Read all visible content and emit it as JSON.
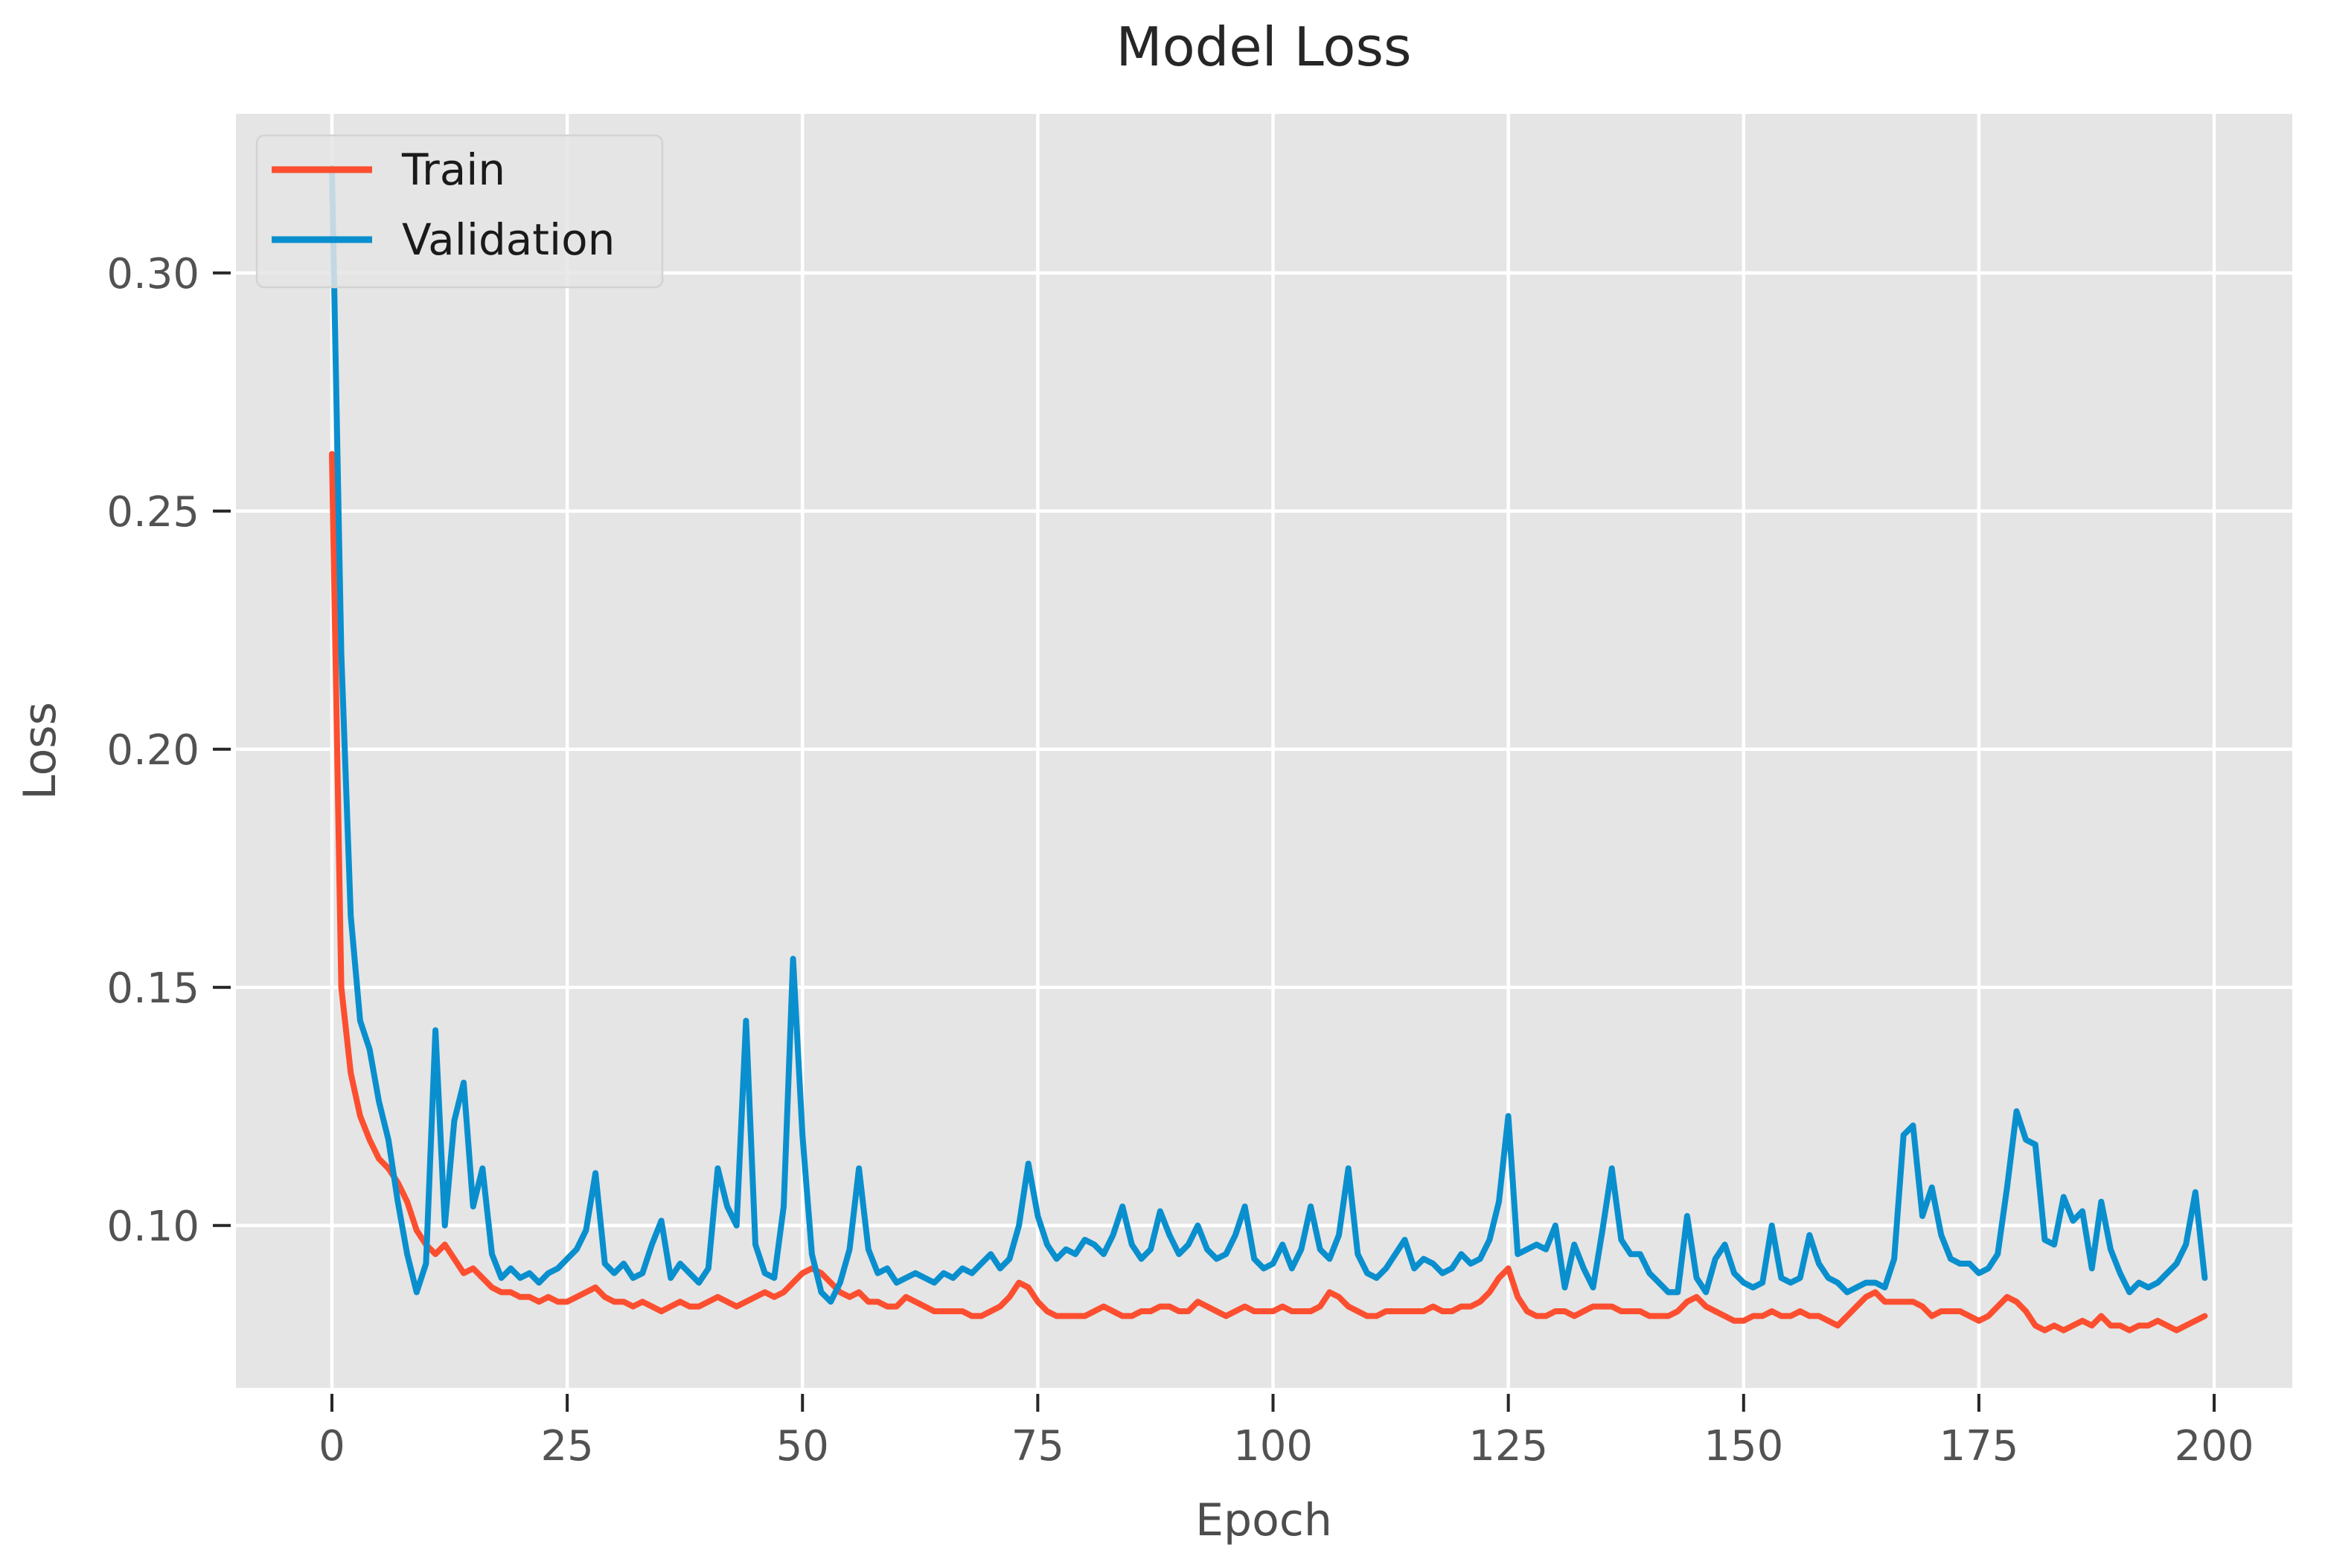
{
  "chart_data": {
    "type": "line",
    "title": "Model Loss",
    "xlabel": "Epoch",
    "ylabel": "Loss",
    "grid": true,
    "legend_position": "upper left",
    "plot_background": "#e5e5e5",
    "grid_color": "#ffffff",
    "tick_color": "#262626",
    "x_ticks": [
      0,
      25,
      50,
      75,
      100,
      125,
      150,
      175,
      200
    ],
    "y_ticks": [
      0.1,
      0.15,
      0.2,
      0.25,
      0.3
    ],
    "y_tick_labels": [
      "0.10",
      "0.15",
      "0.20",
      "0.25",
      "0.30"
    ],
    "xlim": [
      -10.2,
      208.3
    ],
    "ylim": [
      0.0659,
      0.3334
    ],
    "x_start": 0,
    "x_step": 1,
    "series": [
      {
        "name": "Train",
        "color": "#fc4f30",
        "values": [
          0.262,
          0.15,
          0.132,
          0.123,
          0.118,
          0.114,
          0.112,
          0.109,
          0.105,
          0.099,
          0.096,
          0.094,
          0.096,
          0.093,
          0.09,
          0.091,
          0.089,
          0.087,
          0.086,
          0.086,
          0.085,
          0.085,
          0.084,
          0.085,
          0.084,
          0.084,
          0.085,
          0.086,
          0.087,
          0.085,
          0.084,
          0.084,
          0.083,
          0.084,
          0.083,
          0.082,
          0.083,
          0.084,
          0.083,
          0.083,
          0.084,
          0.085,
          0.084,
          0.083,
          0.084,
          0.085,
          0.086,
          0.085,
          0.086,
          0.088,
          0.09,
          0.091,
          0.09,
          0.088,
          0.086,
          0.085,
          0.086,
          0.084,
          0.084,
          0.083,
          0.083,
          0.085,
          0.084,
          0.083,
          0.082,
          0.082,
          0.082,
          0.082,
          0.081,
          0.081,
          0.082,
          0.083,
          0.085,
          0.088,
          0.087,
          0.084,
          0.082,
          0.081,
          0.081,
          0.081,
          0.081,
          0.082,
          0.083,
          0.082,
          0.081,
          0.081,
          0.082,
          0.082,
          0.083,
          0.083,
          0.082,
          0.082,
          0.084,
          0.083,
          0.082,
          0.081,
          0.082,
          0.083,
          0.082,
          0.082,
          0.082,
          0.083,
          0.082,
          0.082,
          0.082,
          0.083,
          0.086,
          0.085,
          0.083,
          0.082,
          0.081,
          0.081,
          0.082,
          0.082,
          0.082,
          0.082,
          0.082,
          0.083,
          0.082,
          0.082,
          0.083,
          0.083,
          0.084,
          0.086,
          0.089,
          0.091,
          0.085,
          0.082,
          0.081,
          0.081,
          0.082,
          0.082,
          0.081,
          0.082,
          0.083,
          0.083,
          0.083,
          0.082,
          0.082,
          0.082,
          0.081,
          0.081,
          0.081,
          0.082,
          0.084,
          0.085,
          0.083,
          0.082,
          0.081,
          0.08,
          0.08,
          0.081,
          0.081,
          0.082,
          0.081,
          0.081,
          0.082,
          0.081,
          0.081,
          0.08,
          0.079,
          0.081,
          0.083,
          0.085,
          0.086,
          0.084,
          0.084,
          0.084,
          0.084,
          0.083,
          0.081,
          0.082,
          0.082,
          0.082,
          0.081,
          0.08,
          0.081,
          0.083,
          0.085,
          0.084,
          0.082,
          0.079,
          0.078,
          0.079,
          0.078,
          0.079,
          0.08,
          0.079,
          0.081,
          0.079,
          0.079,
          0.078,
          0.079,
          0.079,
          0.08,
          0.079,
          0.078,
          0.079,
          0.08,
          0.081
        ]
      },
      {
        "name": "Validation",
        "color": "#0a8fce",
        "values": [
          0.322,
          0.22,
          0.165,
          0.143,
          0.137,
          0.126,
          0.118,
          0.105,
          0.094,
          0.086,
          0.092,
          0.141,
          0.1,
          0.122,
          0.13,
          0.104,
          0.112,
          0.094,
          0.089,
          0.091,
          0.089,
          0.09,
          0.088,
          0.09,
          0.091,
          0.093,
          0.095,
          0.099,
          0.111,
          0.092,
          0.09,
          0.092,
          0.089,
          0.09,
          0.096,
          0.101,
          0.089,
          0.092,
          0.09,
          0.088,
          0.091,
          0.112,
          0.104,
          0.1,
          0.143,
          0.096,
          0.09,
          0.089,
          0.104,
          0.156,
          0.119,
          0.094,
          0.086,
          0.084,
          0.088,
          0.095,
          0.112,
          0.095,
          0.09,
          0.091,
          0.088,
          0.089,
          0.09,
          0.089,
          0.088,
          0.09,
          0.089,
          0.091,
          0.09,
          0.092,
          0.094,
          0.091,
          0.093,
          0.1,
          0.113,
          0.102,
          0.096,
          0.093,
          0.095,
          0.094,
          0.097,
          0.096,
          0.094,
          0.098,
          0.104,
          0.096,
          0.093,
          0.095,
          0.103,
          0.098,
          0.094,
          0.096,
          0.1,
          0.095,
          0.093,
          0.094,
          0.098,
          0.104,
          0.093,
          0.091,
          0.092,
          0.096,
          0.091,
          0.095,
          0.104,
          0.095,
          0.093,
          0.098,
          0.112,
          0.094,
          0.09,
          0.089,
          0.091,
          0.094,
          0.097,
          0.091,
          0.093,
          0.092,
          0.09,
          0.091,
          0.094,
          0.092,
          0.093,
          0.097,
          0.105,
          0.123,
          0.094,
          0.095,
          0.096,
          0.095,
          0.1,
          0.087,
          0.096,
          0.091,
          0.087,
          0.099,
          0.112,
          0.097,
          0.094,
          0.094,
          0.09,
          0.088,
          0.086,
          0.086,
          0.102,
          0.089,
          0.086,
          0.093,
          0.096,
          0.09,
          0.088,
          0.087,
          0.088,
          0.1,
          0.089,
          0.088,
          0.089,
          0.098,
          0.092,
          0.089,
          0.088,
          0.086,
          0.087,
          0.088,
          0.088,
          0.087,
          0.093,
          0.119,
          0.121,
          0.102,
          0.108,
          0.098,
          0.093,
          0.092,
          0.092,
          0.09,
          0.091,
          0.094,
          0.108,
          0.124,
          0.118,
          0.117,
          0.097,
          0.096,
          0.106,
          0.101,
          0.103,
          0.091,
          0.105,
          0.095,
          0.09,
          0.086,
          0.088,
          0.087,
          0.088,
          0.09,
          0.092,
          0.096,
          0.107,
          0.089
        ]
      }
    ]
  }
}
